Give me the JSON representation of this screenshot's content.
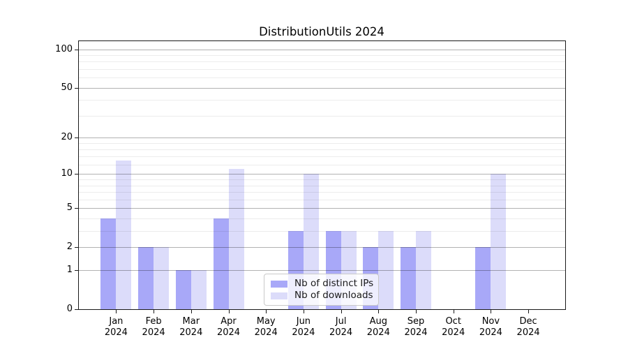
{
  "figure": {
    "title": "DistributionUtils 2024"
  },
  "chart_data": {
    "type": "bar",
    "title": "DistributionUtils 2024",
    "categories": [
      "Jan",
      "Feb",
      "Mar",
      "Apr",
      "May",
      "Jun",
      "Jul",
      "Aug",
      "Sep",
      "Oct",
      "Nov",
      "Dec"
    ],
    "category_year": "2024",
    "series": [
      {
        "name": "Nb of distinct IPs",
        "color": "#a8a8f8",
        "values": [
          4,
          2,
          1,
          4,
          0,
          3,
          3,
          2,
          2,
          0,
          2,
          0
        ]
      },
      {
        "name": "Nb of downloads",
        "color": "#dcdcfa",
        "values": [
          13,
          2,
          1,
          11,
          0,
          10,
          3,
          3,
          3,
          0,
          10,
          0
        ]
      }
    ],
    "xlabel": "",
    "ylabel": "",
    "yscale": "log1p",
    "ylim": [
      0,
      115.5
    ],
    "yticks": [
      0,
      1,
      2,
      5,
      10,
      20,
      50,
      100
    ],
    "yticks_minor": [
      3,
      4,
      6,
      7,
      8,
      9,
      12,
      14,
      16,
      18,
      30,
      40,
      60,
      70,
      80,
      90
    ],
    "grid": true,
    "legend": {
      "position": "lower center",
      "items": [
        "Nb of distinct IPs",
        "Nb of downloads"
      ]
    }
  }
}
